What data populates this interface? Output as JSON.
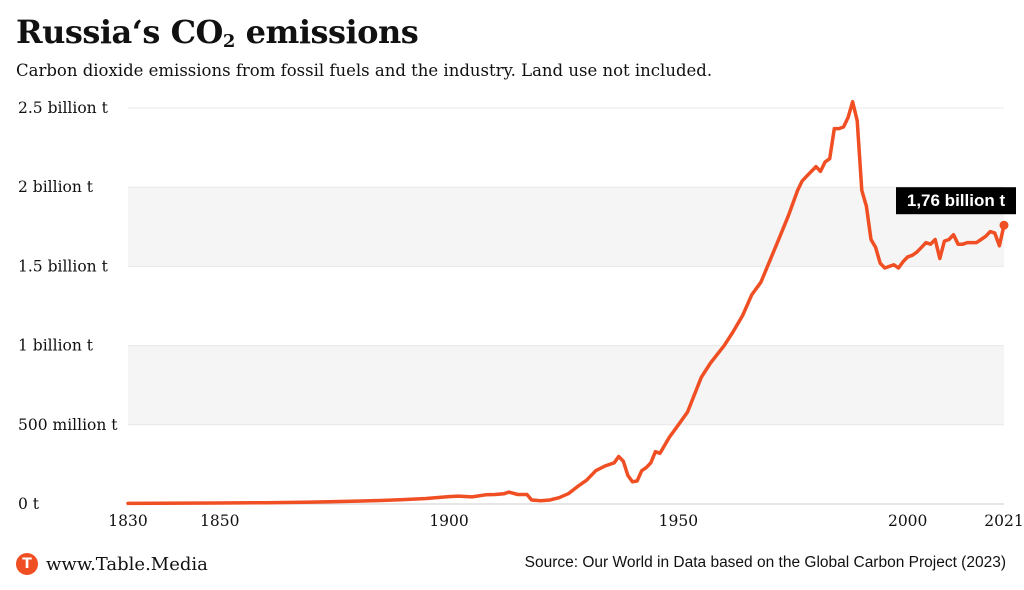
{
  "header": {
    "title_main": "Russia‘s CO",
    "title_sub": "2",
    "title_rest": " emissions",
    "subtitle": "Carbon dioxide emissions from fossil fuels and the industry. Land use not included."
  },
  "footer": {
    "logo_letter": "T",
    "site": "www.Table.Media",
    "source": "Source: Our World in Data based on the Global Carbon Project (2023)"
  },
  "colors": {
    "line": "#f04e23",
    "band": "#f5f5f5",
    "label_bg": "#000000",
    "label_fg": "#ffffff"
  },
  "chart_data": {
    "type": "line",
    "title": "Russia‘s CO2 emissions",
    "subtitle": "Carbon dioxide emissions from fossil fuels and the industry. Land use not included.",
    "xlabel": "",
    "ylabel": "",
    "xlim": [
      1830,
      2021
    ],
    "ylim": [
      0,
      2.5
    ],
    "x_ticks": [
      {
        "value": 1830,
        "label": "1830"
      },
      {
        "value": 1850,
        "label": "1850"
      },
      {
        "value": 1900,
        "label": "1900"
      },
      {
        "value": 1950,
        "label": "1950"
      },
      {
        "value": 2000,
        "label": "2000"
      },
      {
        "value": 2021,
        "label": "2021"
      }
    ],
    "y_ticks": [
      {
        "value": 0,
        "label": "0 t"
      },
      {
        "value": 0.5,
        "label": "500 million t"
      },
      {
        "value": 1,
        "label": "1 billion t"
      },
      {
        "value": 1.5,
        "label": "1.5 billion t"
      },
      {
        "value": 2,
        "label": "2 billion t"
      },
      {
        "value": 2.5,
        "label": "2.5 billion t"
      }
    ],
    "grid": true,
    "annotation": {
      "x": 2021,
      "y": 1.76,
      "label": "1,76 billion t"
    },
    "series": [
      {
        "name": "Russia",
        "unit": "billion t",
        "x": [
          1830,
          1850,
          1860,
          1870,
          1880,
          1885,
          1890,
          1895,
          1900,
          1902,
          1905,
          1908,
          1910,
          1912,
          1913,
          1915,
          1917,
          1918,
          1920,
          1922,
          1924,
          1926,
          1928,
          1930,
          1932,
          1934,
          1936,
          1937,
          1938,
          1939,
          1940,
          1941,
          1942,
          1943,
          1944,
          1945,
          1946,
          1948,
          1950,
          1952,
          1955,
          1957,
          1960,
          1962,
          1964,
          1966,
          1968,
          1970,
          1972,
          1974,
          1975,
          1976,
          1977,
          1978,
          1980,
          1981,
          1982,
          1983,
          1984,
          1985,
          1986,
          1987,
          1988,
          1989,
          1990,
          1991,
          1992,
          1993,
          1994,
          1995,
          1996,
          1997,
          1998,
          1999,
          2000,
          2001,
          2002,
          2003,
          2004,
          2005,
          2006,
          2007,
          2008,
          2009,
          2010,
          2011,
          2012,
          2013,
          2014,
          2015,
          2016,
          2017,
          2018,
          2019,
          2020,
          2021
        ],
        "values": [
          0.004,
          0.006,
          0.008,
          0.012,
          0.018,
          0.022,
          0.028,
          0.035,
          0.047,
          0.05,
          0.045,
          0.058,
          0.06,
          0.065,
          0.075,
          0.06,
          0.06,
          0.025,
          0.02,
          0.025,
          0.04,
          0.065,
          0.11,
          0.15,
          0.21,
          0.24,
          0.26,
          0.3,
          0.27,
          0.18,
          0.14,
          0.145,
          0.21,
          0.23,
          0.26,
          0.33,
          0.32,
          0.42,
          0.5,
          0.58,
          0.8,
          0.89,
          1.0,
          1.09,
          1.19,
          1.32,
          1.4,
          1.54,
          1.68,
          1.82,
          1.9,
          1.98,
          2.04,
          2.07,
          2.13,
          2.1,
          2.16,
          2.18,
          2.37,
          2.37,
          2.38,
          2.44,
          2.54,
          2.42,
          1.98,
          1.88,
          1.67,
          1.62,
          1.52,
          1.49,
          1.5,
          1.51,
          1.49,
          1.53,
          1.56,
          1.57,
          1.59,
          1.62,
          1.65,
          1.64,
          1.67,
          1.55,
          1.66,
          1.67,
          1.7,
          1.64,
          1.64,
          1.65,
          1.65,
          1.65,
          1.67,
          1.69,
          1.72,
          1.71,
          1.63,
          1.76
        ]
      }
    ]
  }
}
